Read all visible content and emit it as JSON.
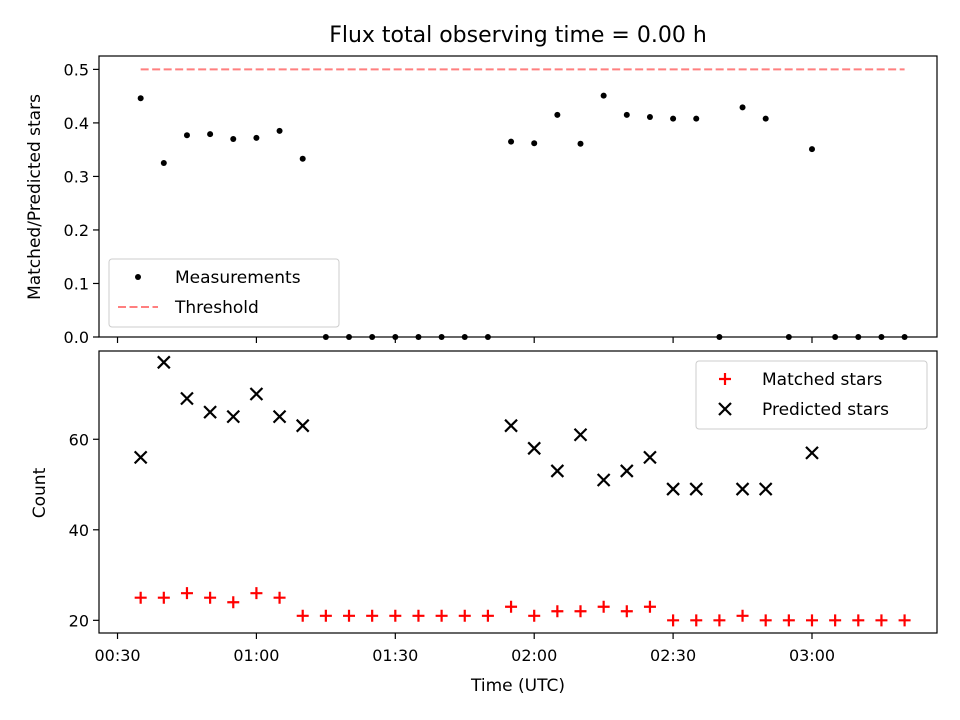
{
  "chart_data": [
    {
      "type": "scatter",
      "title": "Flux total observing time = 0.00 h",
      "xlabel": "",
      "ylabel": "Matched/Predicted stars",
      "xlim": [
        "00:26",
        "03:27"
      ],
      "ylim": [
        0,
        0.525
      ],
      "yticks": [
        "0.0",
        "0.1",
        "0.2",
        "0.3",
        "0.4",
        "0.5"
      ],
      "legend_location": "lower-left",
      "series": [
        {
          "name": "Measurements",
          "marker": "dot",
          "color": "#000000",
          "x": [
            "00:35",
            "00:40",
            "00:45",
            "00:50",
            "00:55",
            "01:00",
            "01:05",
            "01:10",
            "01:15",
            "01:20",
            "01:25",
            "01:30",
            "01:35",
            "01:40",
            "01:45",
            "01:50",
            "01:55",
            "02:00",
            "02:05",
            "02:10",
            "02:15",
            "02:20",
            "02:25",
            "02:30",
            "02:35",
            "02:40",
            "02:45",
            "02:50",
            "02:55",
            "03:00",
            "03:05",
            "03:10",
            "03:15",
            "03:20"
          ],
          "y": [
            0.446,
            0.325,
            0.377,
            0.379,
            0.37,
            0.372,
            0.385,
            0.333,
            0,
            0,
            0,
            0,
            0,
            0,
            0,
            0,
            0.365,
            0.362,
            0.415,
            0.361,
            0.451,
            0.415,
            0.411,
            0.408,
            0.408,
            0,
            0.429,
            0.408,
            0,
            0.351,
            0,
            0,
            0,
            0
          ]
        },
        {
          "name": "Threshold",
          "marker": "dashed-line",
          "color": "#ff7f7f",
          "x": [
            "00:35",
            "03:20"
          ],
          "y": [
            0.5,
            0.5
          ]
        }
      ]
    },
    {
      "type": "scatter",
      "title": "",
      "xlabel": "Time (UTC)",
      "ylabel": "Count",
      "xlim": [
        "00:26",
        "03:27"
      ],
      "ylim": [
        17.2,
        79.5
      ],
      "xticks": [
        "00:30",
        "01:00",
        "01:30",
        "02:00",
        "02:30",
        "03:00"
      ],
      "yticks": [
        "20",
        "40",
        "60"
      ],
      "legend_location": "upper-right",
      "series": [
        {
          "name": "Matched stars",
          "marker": "plus",
          "color": "#ff0000",
          "x": [
            "00:35",
            "00:40",
            "00:45",
            "00:50",
            "00:55",
            "01:00",
            "01:05",
            "01:10",
            "01:15",
            "01:20",
            "01:25",
            "01:30",
            "01:35",
            "01:40",
            "01:45",
            "01:50",
            "01:55",
            "02:00",
            "02:05",
            "02:10",
            "02:15",
            "02:20",
            "02:25",
            "02:30",
            "02:35",
            "02:40",
            "02:45",
            "02:50",
            "02:55",
            "03:00",
            "03:05",
            "03:10",
            "03:15",
            "03:20"
          ],
          "y": [
            25,
            25,
            26,
            25,
            24,
            26,
            25,
            21,
            21,
            21,
            21,
            21,
            21,
            21,
            21,
            21,
            23,
            21,
            22,
            22,
            23,
            22,
            23,
            20,
            20,
            20,
            21,
            20,
            20,
            20,
            20,
            20,
            20,
            20
          ]
        },
        {
          "name": "Predicted stars",
          "marker": "x",
          "color": "#000000",
          "x": [
            "00:35",
            "00:40",
            "00:45",
            "00:50",
            "00:55",
            "01:00",
            "01:05",
            "01:10",
            "01:55",
            "02:00",
            "02:05",
            "02:10",
            "02:15",
            "02:20",
            "02:25",
            "02:30",
            "02:35",
            "02:45",
            "02:50",
            "03:00"
          ],
          "y": [
            56,
            77,
            69,
            66,
            65,
            70,
            65,
            63,
            63,
            58,
            53,
            61,
            51,
            53,
            56,
            49,
            49,
            49,
            49,
            57
          ]
        }
      ]
    }
  ]
}
